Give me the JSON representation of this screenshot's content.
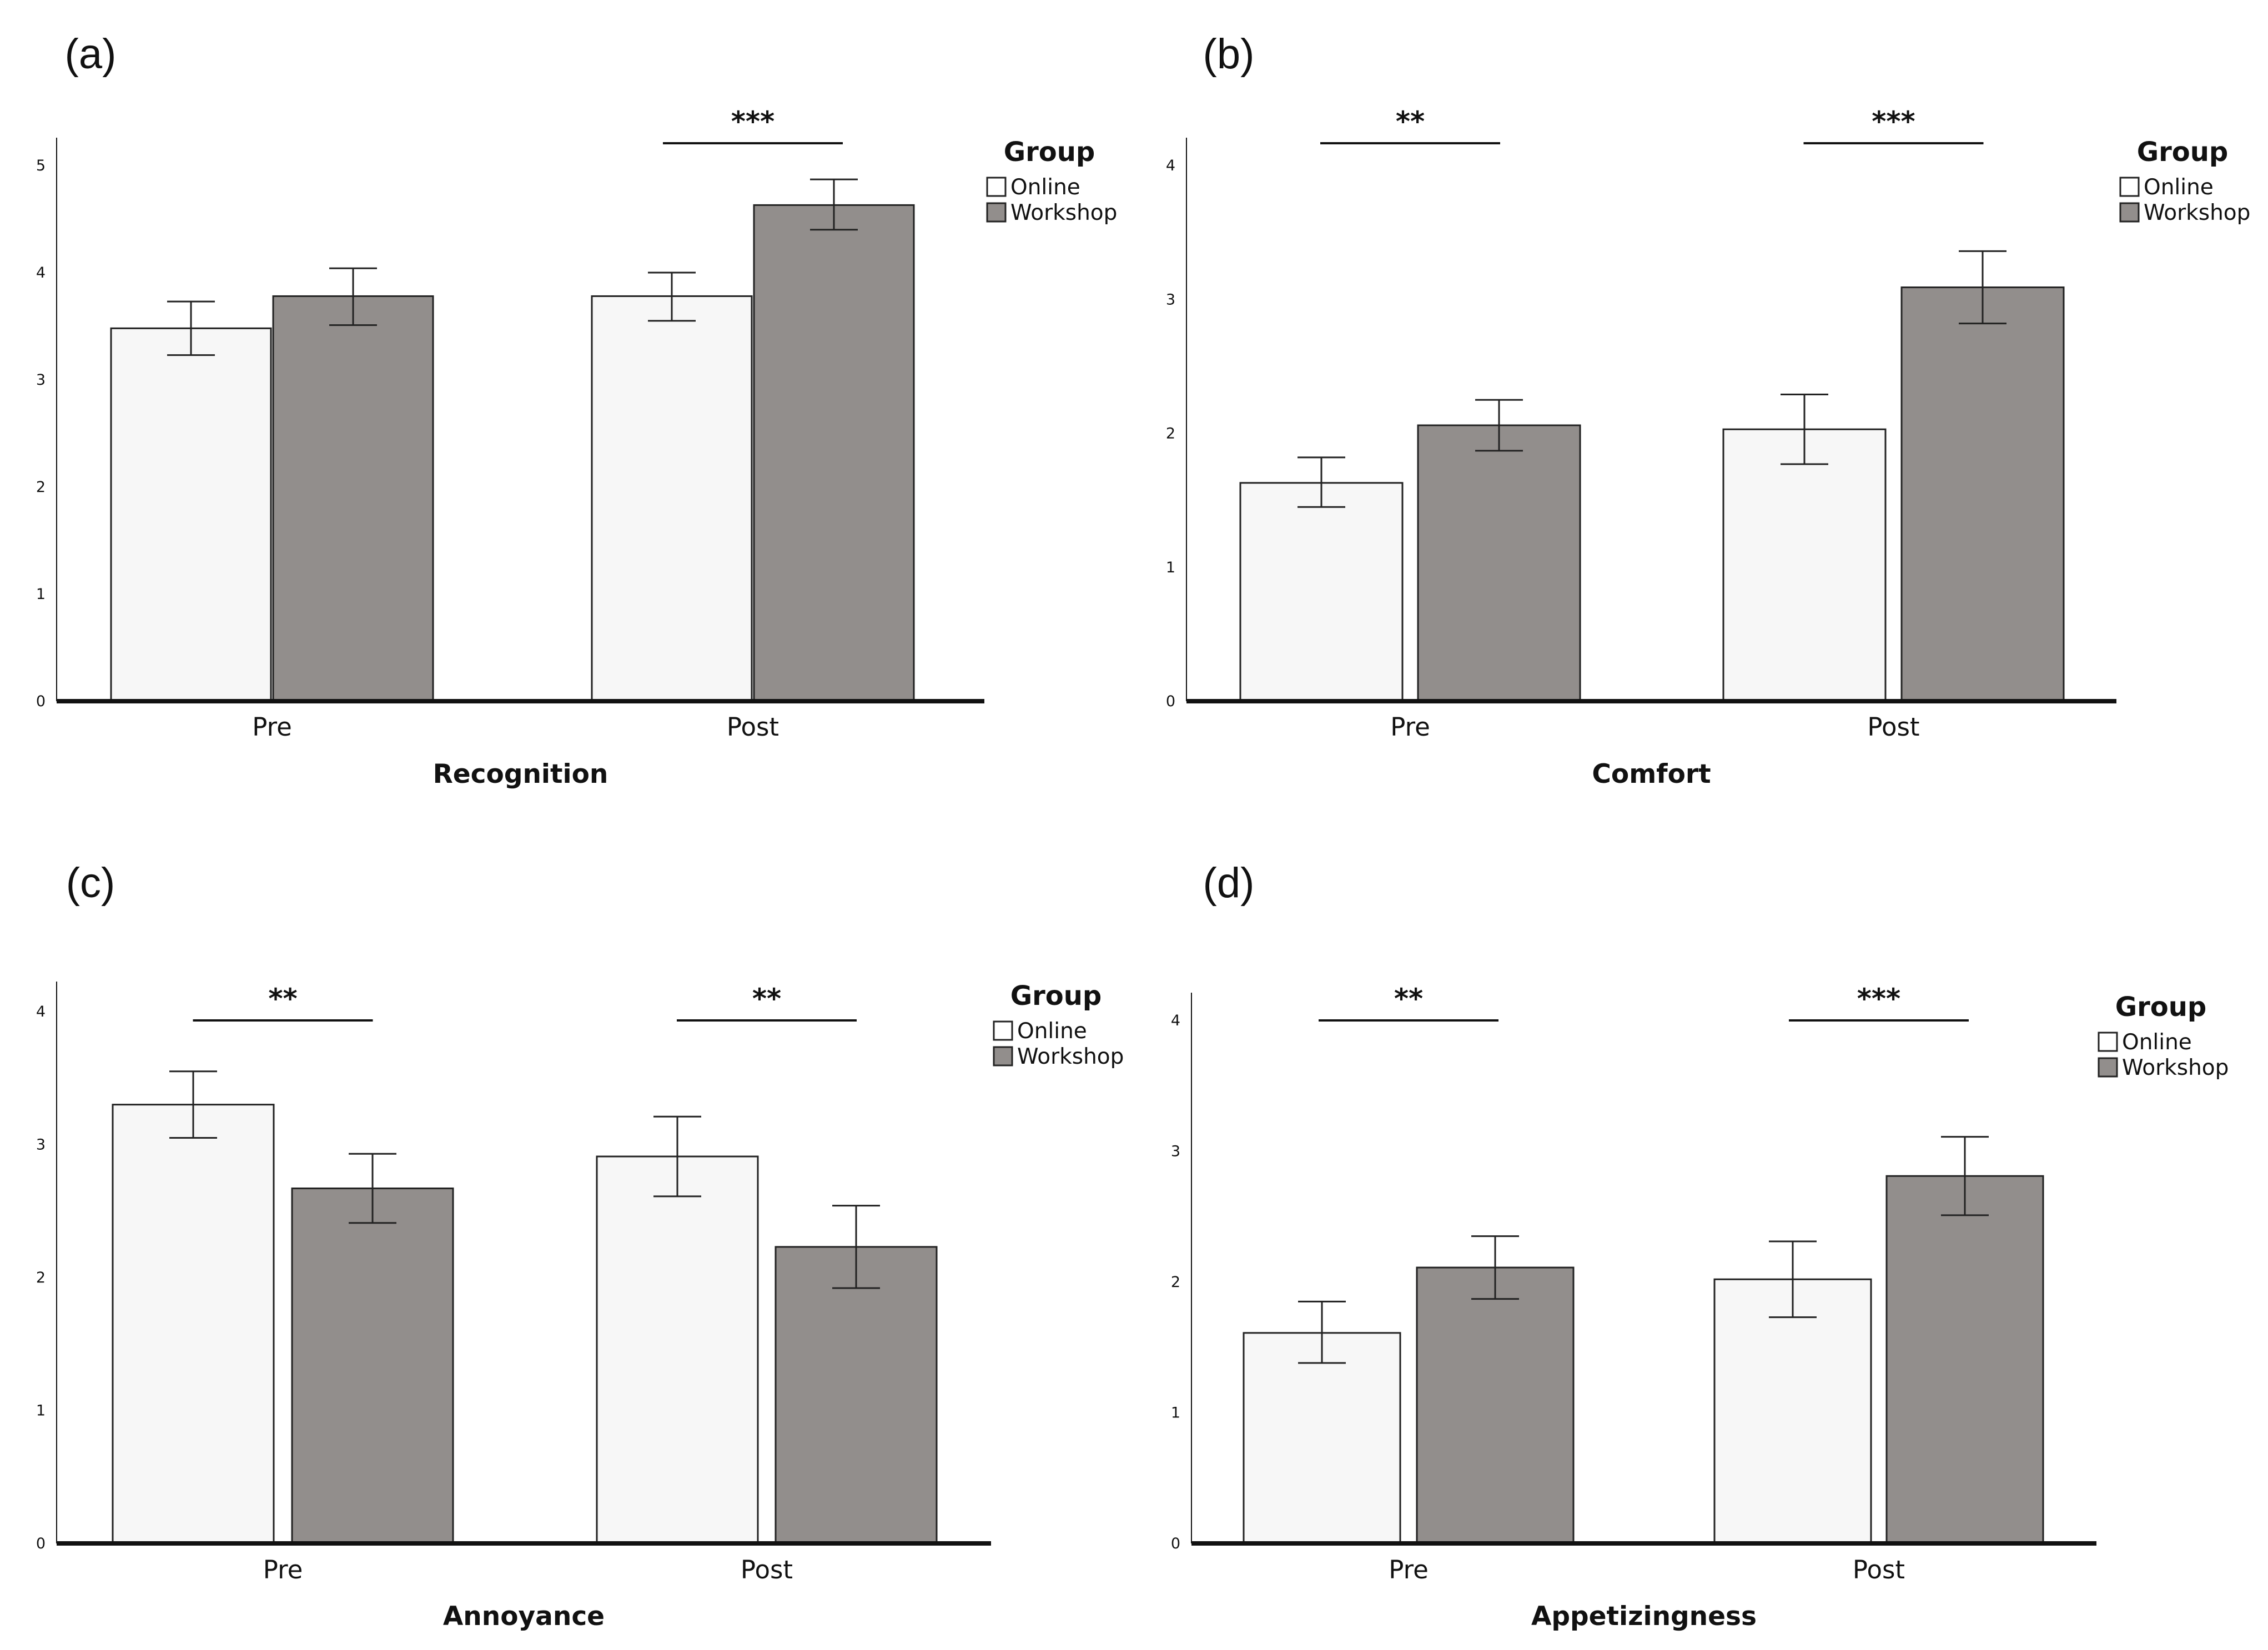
{
  "colors": {
    "online": "#f7f7f7",
    "workshop": "#928e8c",
    "stroke": "#222222",
    "axis": "#111111"
  },
  "chart_data": [
    {
      "panel": "(a)",
      "type": "bar",
      "xlabel": "Recognition",
      "ylabel": "",
      "ylim": [
        0,
        5
      ],
      "yticks": [
        "0",
        "1",
        "2",
        "3",
        "4",
        "5"
      ],
      "categories": [
        "Pre",
        "Post"
      ],
      "legend": {
        "title": "Group",
        "placement": "top-right"
      },
      "series": [
        {
          "name": "Online",
          "values": [
            3.48,
            3.78
          ],
          "err_low": [
            3.23,
            3.55
          ],
          "err_high": [
            3.73,
            4.0
          ]
        },
        {
          "name": "Workshop",
          "values": [
            3.78,
            4.63
          ],
          "err_low": [
            3.51,
            4.4
          ],
          "err_high": [
            4.04,
            4.87
          ]
        }
      ],
      "significance": [
        {
          "category_index": 1,
          "label": "***"
        }
      ]
    },
    {
      "panel": "(b)",
      "type": "bar",
      "xlabel": "Comfort",
      "ylabel": "",
      "ylim": [
        0,
        4
      ],
      "yticks": [
        "0",
        "1",
        "2",
        "3",
        "4"
      ],
      "categories": [
        "Pre",
        "Post"
      ],
      "legend": {
        "title": "Group",
        "placement": "top-right"
      },
      "series": [
        {
          "name": "Online",
          "values": [
            1.63,
            2.03
          ],
          "err_low": [
            1.45,
            1.77
          ],
          "err_high": [
            1.82,
            2.29
          ]
        },
        {
          "name": "Workshop",
          "values": [
            2.06,
            3.09
          ],
          "err_low": [
            1.87,
            2.82
          ],
          "err_high": [
            2.25,
            3.36
          ]
        }
      ],
      "significance": [
        {
          "category_index": 0,
          "label": "**"
        },
        {
          "category_index": 1,
          "label": "***"
        }
      ]
    },
    {
      "panel": "(c)",
      "type": "bar",
      "xlabel": "Annoyance",
      "ylabel": "",
      "ylim": [
        0,
        4
      ],
      "yticks": [
        "0",
        "1",
        "2",
        "3",
        "4"
      ],
      "categories": [
        "Pre",
        "Post"
      ],
      "legend": {
        "title": "Group",
        "placement": "top-right"
      },
      "series": [
        {
          "name": "Online",
          "values": [
            3.3,
            2.91
          ],
          "err_low": [
            3.05,
            2.61
          ],
          "err_high": [
            3.55,
            3.21
          ]
        },
        {
          "name": "Workshop",
          "values": [
            2.67,
            2.23
          ],
          "err_low": [
            2.41,
            1.92
          ],
          "err_high": [
            2.93,
            2.54
          ]
        }
      ],
      "significance": [
        {
          "category_index": 0,
          "label": "**"
        },
        {
          "category_index": 1,
          "label": "**"
        }
      ]
    },
    {
      "panel": "(d)",
      "type": "bar",
      "xlabel": "Appetizingness",
      "ylabel": "",
      "ylim": [
        0,
        4
      ],
      "yticks": [
        "0",
        "1",
        "2",
        "3",
        "4"
      ],
      "categories": [
        "Pre",
        "Post"
      ],
      "legend": {
        "title": "Group",
        "placement": "top-right"
      },
      "series": [
        {
          "name": "Online",
          "values": [
            1.61,
            2.02
          ],
          "err_low": [
            1.38,
            1.73
          ],
          "err_high": [
            1.85,
            2.31
          ]
        },
        {
          "name": "Workshop",
          "values": [
            2.11,
            2.81
          ],
          "err_low": [
            1.87,
            2.51
          ],
          "err_high": [
            2.35,
            3.11
          ]
        }
      ],
      "significance": [
        {
          "category_index": 0,
          "label": "**"
        },
        {
          "category_index": 1,
          "label": "***"
        }
      ]
    }
  ]
}
